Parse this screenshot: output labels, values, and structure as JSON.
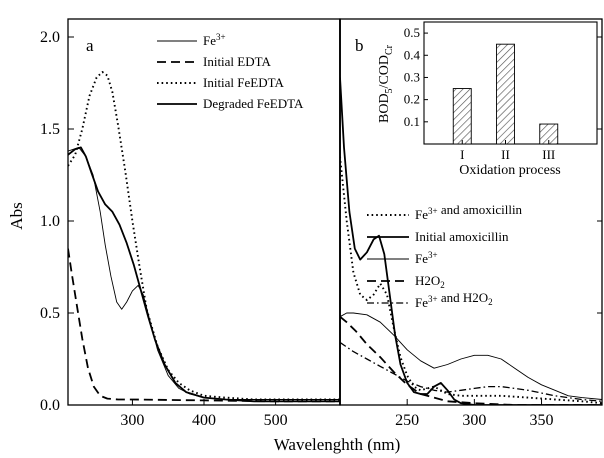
{
  "figure": {
    "ylabel": "Abs",
    "xlabel": "Wavelenghth (nm)",
    "yticks": [
      "0.0",
      "0.5",
      "1.0",
      "1.5",
      "2.0"
    ]
  },
  "colors": {
    "ink": "#000000",
    "bar_fill": "#ffffff",
    "hatch": "#555555"
  },
  "chart_data": [
    {
      "type": "line",
      "panel": "a",
      "xlim": [
        210,
        590
      ],
      "ylim": [
        0,
        2.0
      ],
      "xticks": [
        300,
        400,
        500
      ],
      "xtick_labels": [
        "300",
        "400",
        "500"
      ],
      "series": [
        {
          "name": "Fe3+",
          "style": "thin-solid",
          "x": [
            210,
            225,
            235,
            245,
            255,
            262,
            270,
            278,
            285,
            292,
            300,
            308,
            315,
            325,
            335,
            350,
            365,
            380,
            400,
            430,
            470,
            520,
            590
          ],
          "y": [
            1.38,
            1.4,
            1.35,
            1.25,
            1.05,
            0.87,
            0.7,
            0.56,
            0.52,
            0.56,
            0.62,
            0.65,
            0.6,
            0.45,
            0.3,
            0.16,
            0.09,
            0.06,
            0.04,
            0.03,
            0.03,
            0.03,
            0.03
          ]
        },
        {
          "name": "Initial EDTA",
          "style": "dashed",
          "x": [
            210,
            215,
            222,
            230,
            238,
            246,
            255,
            265,
            280,
            300,
            400,
            500,
            590
          ],
          "y": [
            0.85,
            0.72,
            0.55,
            0.36,
            0.2,
            0.1,
            0.05,
            0.035,
            0.03,
            0.03,
            0.025,
            0.02,
            0.02
          ]
        },
        {
          "name": "Initial FeEDTA",
          "style": "dotted",
          "x": [
            210,
            220,
            230,
            240,
            250,
            258,
            265,
            272,
            280,
            290,
            300,
            310,
            320,
            335,
            350,
            365,
            380,
            400,
            430,
            470,
            520,
            590
          ],
          "y": [
            1.3,
            1.36,
            1.5,
            1.68,
            1.78,
            1.81,
            1.79,
            1.7,
            1.52,
            1.27,
            1.0,
            0.75,
            0.52,
            0.32,
            0.19,
            0.12,
            0.08,
            0.05,
            0.04,
            0.03,
            0.03,
            0.03
          ]
        },
        {
          "name": "Degraded FeEDTA",
          "style": "thick-solid",
          "x": [
            210,
            220,
            228,
            235,
            243,
            252,
            262,
            272,
            282,
            292,
            302,
            312,
            322,
            332,
            345,
            360,
            375,
            400,
            430,
            470,
            520,
            590
          ],
          "y": [
            1.36,
            1.39,
            1.4,
            1.35,
            1.26,
            1.16,
            1.09,
            1.05,
            0.98,
            0.88,
            0.76,
            0.62,
            0.48,
            0.35,
            0.22,
            0.12,
            0.07,
            0.04,
            0.03,
            0.02,
            0.02,
            0.02
          ]
        }
      ]
    },
    {
      "type": "line",
      "panel": "b",
      "xlim": [
        200,
        395
      ],
      "ylim": [
        0,
        2.0
      ],
      "xticks": [
        250,
        300,
        350
      ],
      "xtick_labels": [
        "250",
        "300",
        "350"
      ],
      "series": [
        {
          "name": "Fe3+ and amoxicillin",
          "style": "dotted",
          "x": [
            200,
            205,
            210,
            215,
            220,
            225,
            230,
            235,
            240,
            245,
            250,
            255,
            260,
            265,
            270,
            275,
            280,
            290,
            300,
            320,
            340,
            360,
            380,
            395
          ],
          "y": [
            1.35,
            1.0,
            0.72,
            0.6,
            0.57,
            0.6,
            0.66,
            0.6,
            0.42,
            0.26,
            0.16,
            0.1,
            0.08,
            0.09,
            0.1,
            0.08,
            0.06,
            0.05,
            0.05,
            0.05,
            0.04,
            0.03,
            0.02,
            0.01
          ]
        },
        {
          "name": "Initial amoxicillin",
          "style": "thick-solid",
          "x": [
            200,
            203,
            207,
            211,
            215,
            220,
            225,
            229,
            233,
            237,
            241,
            245,
            250,
            255,
            260,
            265,
            270,
            275,
            280,
            285,
            290,
            300,
            320,
            350,
            395
          ],
          "y": [
            1.78,
            1.4,
            1.05,
            0.85,
            0.79,
            0.83,
            0.9,
            0.92,
            0.82,
            0.6,
            0.38,
            0.22,
            0.12,
            0.07,
            0.06,
            0.06,
            0.1,
            0.12,
            0.08,
            0.03,
            0.01,
            0.0,
            0.0,
            0.0,
            0.0
          ]
        },
        {
          "name": "Fe3+",
          "style": "thin-solid",
          "x": [
            200,
            205,
            210,
            220,
            230,
            240,
            250,
            260,
            270,
            280,
            290,
            300,
            310,
            320,
            330,
            340,
            350,
            360,
            370,
            380,
            395
          ],
          "y": [
            0.48,
            0.5,
            0.5,
            0.49,
            0.45,
            0.38,
            0.3,
            0.24,
            0.2,
            0.22,
            0.25,
            0.27,
            0.27,
            0.25,
            0.2,
            0.15,
            0.11,
            0.08,
            0.05,
            0.04,
            0.03
          ]
        },
        {
          "name": "H2O2",
          "style": "dashed",
          "x": [
            200,
            205,
            212,
            220,
            230,
            240,
            250,
            260,
            270,
            280,
            300,
            330,
            360,
            395
          ],
          "y": [
            0.48,
            0.45,
            0.4,
            0.33,
            0.26,
            0.18,
            0.11,
            0.06,
            0.04,
            0.02,
            0.01,
            0.0,
            0.0,
            0.0
          ]
        },
        {
          "name": "Fe3+ and H2O2",
          "style": "dash-dot",
          "x": [
            200,
            210,
            220,
            230,
            240,
            250,
            260,
            270,
            280,
            290,
            300,
            310,
            320,
            330,
            340,
            360,
            380,
            395
          ],
          "y": [
            0.34,
            0.29,
            0.25,
            0.21,
            0.17,
            0.13,
            0.1,
            0.08,
            0.07,
            0.08,
            0.09,
            0.1,
            0.1,
            0.09,
            0.08,
            0.05,
            0.03,
            0.02
          ]
        }
      ]
    },
    {
      "type": "bar",
      "panel": "inset",
      "categories": [
        "I",
        "II",
        "III"
      ],
      "values": [
        0.25,
        0.45,
        0.09
      ],
      "ylim": [
        0,
        0.55
      ],
      "yticks": [
        "0.1",
        "0.2",
        "0.3",
        "0.4",
        "0.5"
      ],
      "xlabel": "Oxidation process",
      "ylabel": "BOD5/CODCr"
    }
  ]
}
